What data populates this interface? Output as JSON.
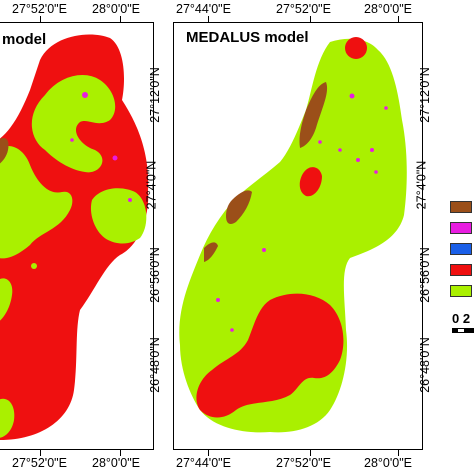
{
  "left_map": {
    "title": "model",
    "top_axis": [
      "27°52'0\"E",
      "28°0'0\"E"
    ],
    "bottom_axis": [
      "27°52'0\"E",
      "28°0'0\"E"
    ]
  },
  "right_map": {
    "title": "MEDALUS model",
    "top_axis": [
      "27°44'0\"E",
      "27°52'0\"E",
      "28°0'0\"E"
    ],
    "bottom_axis": [
      "27°44'0\"E",
      "27°52'0\"E",
      "28°0'0\"E"
    ],
    "right_axis": [
      "27°12'0\"N",
      "27°4'0\"N",
      "26°56'0\"N",
      "26°48'0\"N"
    ]
  },
  "middle_axis": [
    "27°12'0\"N",
    "27°4'0\"N",
    "26°56'0\"N",
    "26°48'0\"N"
  ],
  "legend": {
    "colors": [
      "#9b4f19",
      "#e81ce0",
      "#1a5fe8",
      "#ef1010",
      "#aaf000"
    ],
    "scale_text": "0 2"
  }
}
